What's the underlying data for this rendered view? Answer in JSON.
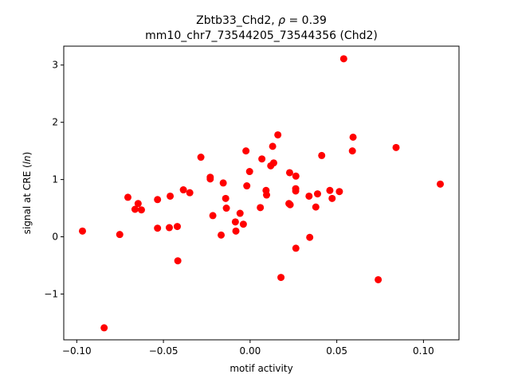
{
  "chart_data": {
    "type": "scatter",
    "title_line1_prefix": "Zbtb33_Chd2, ",
    "title_line1_rho": "ρ",
    "title_line1_suffix": " = 0.39",
    "title_line2": "mm10_chr7_73544205_73544356 (Chd2)",
    "xlabel": "motif activity",
    "ylabel_prefix": "signal at CRE (",
    "ylabel_italic": "ln",
    "ylabel_suffix": ")",
    "xlim": [
      -0.1075,
      0.1205
    ],
    "ylim": [
      -1.8,
      3.33
    ],
    "xticks": [
      -0.1,
      -0.05,
      0.0,
      0.05,
      0.1
    ],
    "xtick_labels": [
      "−0.10",
      "−0.05",
      "0.00",
      "0.05",
      "0.10"
    ],
    "yticks": [
      -1,
      0,
      1,
      2,
      3
    ],
    "ytick_labels": [
      "−1",
      "0",
      "1",
      "2",
      "3"
    ],
    "marker_color": "#ff0000",
    "points": [
      {
        "x": -0.0967,
        "y": 0.1
      },
      {
        "x": -0.0842,
        "y": -1.59
      },
      {
        "x": -0.0752,
        "y": 0.04
      },
      {
        "x": -0.0705,
        "y": 0.69
      },
      {
        "x": -0.0664,
        "y": 0.48
      },
      {
        "x": -0.0646,
        "y": 0.58
      },
      {
        "x": -0.0627,
        "y": 0.47
      },
      {
        "x": -0.0534,
        "y": 0.65
      },
      {
        "x": -0.0534,
        "y": 0.15
      },
      {
        "x": -0.0466,
        "y": 0.16
      },
      {
        "x": -0.0461,
        "y": 0.71
      },
      {
        "x": -0.042,
        "y": 0.18
      },
      {
        "x": -0.0417,
        "y": -0.42
      },
      {
        "x": -0.0385,
        "y": 0.82
      },
      {
        "x": -0.0348,
        "y": 0.77
      },
      {
        "x": -0.0284,
        "y": 1.39
      },
      {
        "x": -0.023,
        "y": 1.04
      },
      {
        "x": -0.023,
        "y": 1.01
      },
      {
        "x": -0.0215,
        "y": 0.37
      },
      {
        "x": -0.0167,
        "y": 0.03
      },
      {
        "x": -0.0155,
        "y": 0.94
      },
      {
        "x": -0.0141,
        "y": 0.67
      },
      {
        "x": -0.0137,
        "y": 0.5
      },
      {
        "x": -0.0085,
        "y": 0.26
      },
      {
        "x": -0.0082,
        "y": 0.1
      },
      {
        "x": -0.0058,
        "y": 0.41
      },
      {
        "x": -0.0039,
        "y": 0.22
      },
      {
        "x": -0.0024,
        "y": 1.5
      },
      {
        "x": -0.0019,
        "y": 0.89
      },
      {
        "x": -0.0003,
        "y": 1.14
      },
      {
        "x": 0.0059,
        "y": 0.51
      },
      {
        "x": 0.0068,
        "y": 1.36
      },
      {
        "x": 0.0092,
        "y": 0.81
      },
      {
        "x": 0.0095,
        "y": 0.73
      },
      {
        "x": 0.0119,
        "y": 1.24
      },
      {
        "x": 0.013,
        "y": 1.58
      },
      {
        "x": 0.0136,
        "y": 1.29
      },
      {
        "x": 0.016,
        "y": 1.78
      },
      {
        "x": 0.0178,
        "y": -0.71
      },
      {
        "x": 0.0224,
        "y": 0.58
      },
      {
        "x": 0.0228,
        "y": 1.12
      },
      {
        "x": 0.0231,
        "y": 0.56
      },
      {
        "x": 0.0263,
        "y": 0.8
      },
      {
        "x": 0.0263,
        "y": 0.84
      },
      {
        "x": 0.0264,
        "y": 1.06
      },
      {
        "x": 0.0264,
        "y": -0.2
      },
      {
        "x": 0.034,
        "y": 0.71
      },
      {
        "x": 0.0344,
        "y": -0.01
      },
      {
        "x": 0.0379,
        "y": 0.52
      },
      {
        "x": 0.0389,
        "y": 0.75
      },
      {
        "x": 0.0413,
        "y": 1.42
      },
      {
        "x": 0.046,
        "y": 0.81
      },
      {
        "x": 0.0473,
        "y": 0.67
      },
      {
        "x": 0.0515,
        "y": 0.79
      },
      {
        "x": 0.054,
        "y": 3.11
      },
      {
        "x": 0.059,
        "y": 1.5
      },
      {
        "x": 0.0594,
        "y": 1.74
      },
      {
        "x": 0.0739,
        "y": -0.75
      },
      {
        "x": 0.0842,
        "y": 1.56
      },
      {
        "x": 0.1097,
        "y": 0.92
      }
    ]
  }
}
